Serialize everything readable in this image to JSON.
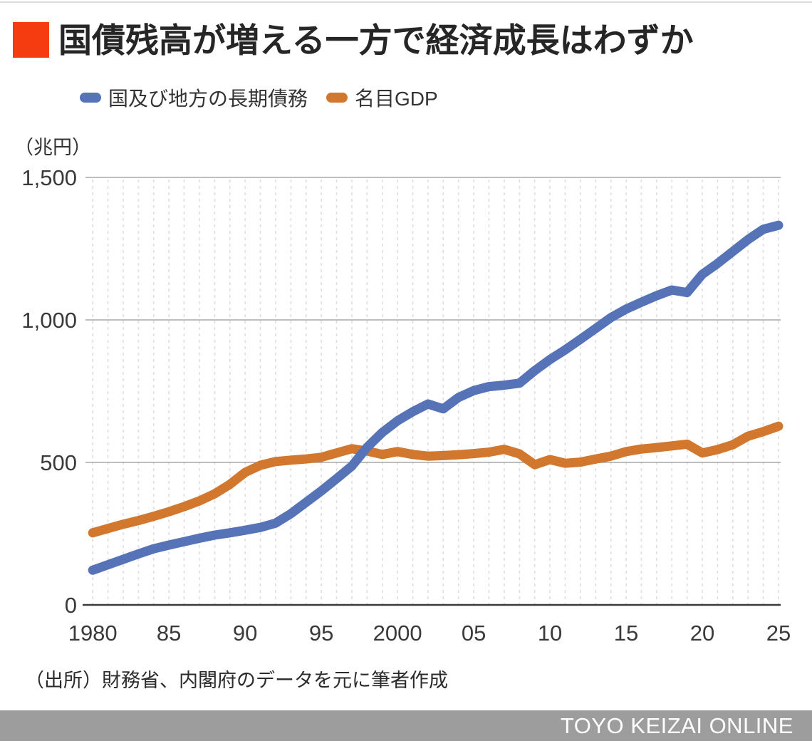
{
  "header": {
    "title": "国債残高が増える一方で経済成長はわずか",
    "accent_color": "#f43c10"
  },
  "chart_data": {
    "type": "line",
    "title": "国債残高が増える一方で経済成長はわずか",
    "unit_label": "（兆円）",
    "xlabel": "",
    "ylabel": "兆円",
    "xlim": [
      1980,
      2025
    ],
    "ylim": [
      0,
      1500
    ],
    "grid": {
      "horizontal": "solid",
      "vertical": "dashed"
    },
    "legend_position": "top",
    "x": [
      1980,
      1981,
      1982,
      1983,
      1984,
      1985,
      1986,
      1987,
      1988,
      1989,
      1990,
      1991,
      1992,
      1993,
      1994,
      1995,
      1996,
      1997,
      1998,
      1999,
      2000,
      2001,
      2002,
      2003,
      2004,
      2005,
      2006,
      2007,
      2008,
      2009,
      2010,
      2011,
      2012,
      2013,
      2014,
      2015,
      2016,
      2017,
      2018,
      2019,
      2020,
      2021,
      2022,
      2023,
      2024,
      2025
    ],
    "series": [
      {
        "name": "国及び地方の長期債務",
        "color": "#5573b6",
        "values": [
          122,
          141,
          160,
          179,
          197,
          210,
          222,
          234,
          245,
          253,
          262,
          272,
          287,
          320,
          360,
          400,
          443,
          487,
          553,
          605,
          646,
          678,
          705,
          688,
          728,
          752,
          766,
          771,
          778,
          822,
          861,
          895,
          932,
          970,
          1008,
          1038,
          1062,
          1085,
          1105,
          1096,
          1160,
          1198,
          1240,
          1282,
          1318,
          1332
        ]
      },
      {
        "name": "名目GDP",
        "color": "#d2772e",
        "values": [
          253,
          268,
          283,
          296,
          311,
          327,
          345,
          365,
          390,
          423,
          465,
          490,
          503,
          508,
          512,
          518,
          533,
          548,
          540,
          528,
          538,
          528,
          522,
          524,
          527,
          531,
          536,
          546,
          530,
          492,
          510,
          497,
          501,
          512,
          522,
          538,
          547,
          552,
          558,
          564,
          533,
          545,
          562,
          592,
          608,
          627
        ]
      }
    ],
    "x_ticks": [
      {
        "year": 1980,
        "label": "1980"
      },
      {
        "year": 1985,
        "label": "85"
      },
      {
        "year": 1990,
        "label": "90"
      },
      {
        "year": 1995,
        "label": "95"
      },
      {
        "year": 2000,
        "label": "2000"
      },
      {
        "year": 2005,
        "label": "05"
      },
      {
        "year": 2010,
        "label": "10"
      },
      {
        "year": 2015,
        "label": "15"
      },
      {
        "year": 2020,
        "label": "20"
      },
      {
        "year": 2025,
        "label": "25"
      }
    ],
    "y_ticks": [
      {
        "value": 0,
        "label": "0"
      },
      {
        "value": 500,
        "label": "500"
      },
      {
        "value": 1000,
        "label": "1,000"
      },
      {
        "value": 1500,
        "label": "1,500"
      }
    ]
  },
  "source": "（出所）財務省、内閣府のデータを元に筆者作成",
  "footer": {
    "brand": "TOYO KEIZAI ONLINE",
    "bar_color": "#9d9d9d"
  }
}
